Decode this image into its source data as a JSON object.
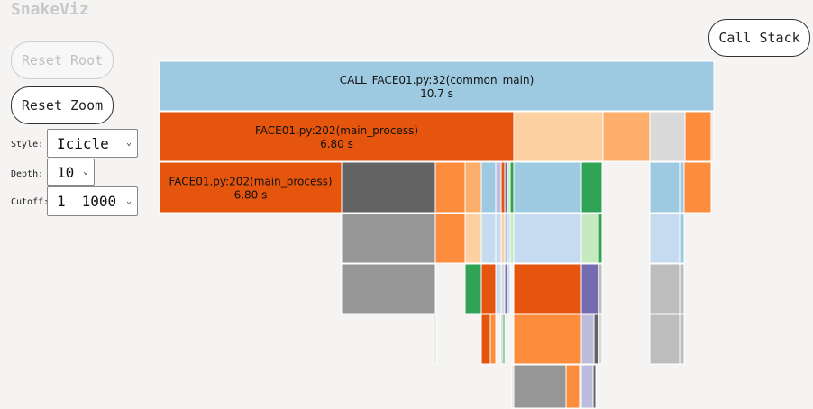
{
  "app": {
    "title": "SnakeViz"
  },
  "buttons": {
    "reset_root": "Reset Root",
    "reset_zoom": "Reset Zoom",
    "call_stack": "Call Stack"
  },
  "controls": {
    "style_label": "Style:",
    "style_value": "Icicle",
    "depth_label": "Depth:",
    "depth_value": "10",
    "cutoff_label": "Cutoff:",
    "cutoff_value_a": "1",
    "cutoff_value_b": "1000"
  },
  "icicle": {
    "labeled_blocks": [
      {
        "name": "CALL_FACE01.py:32(common_main)",
        "time": "10.7 s",
        "color": "#9ecae1"
      },
      {
        "name": "FACE01.py:202(main_process)",
        "time": "6.80 s",
        "color": "#e6550d"
      },
      {
        "name": "FACE01.py:202(main_process)",
        "time": "6.80 s",
        "color": "#e6550d"
      }
    ]
  },
  "palette": {
    "blue": "#9ecae1",
    "light_blue": "#c6dbef",
    "dark_orange": "#e6550d",
    "orange": "#fd8d3c",
    "light_orange": "#fdae6b",
    "peach": "#fdd0a2",
    "dark_gray": "#636363",
    "gray": "#969696",
    "light_gray": "#bdbdbd",
    "pale_gray": "#d9d9d9",
    "green": "#31a354",
    "pale_green": "#c7e9c0",
    "purple": "#756bb1",
    "lavender": "#bcbddc"
  }
}
